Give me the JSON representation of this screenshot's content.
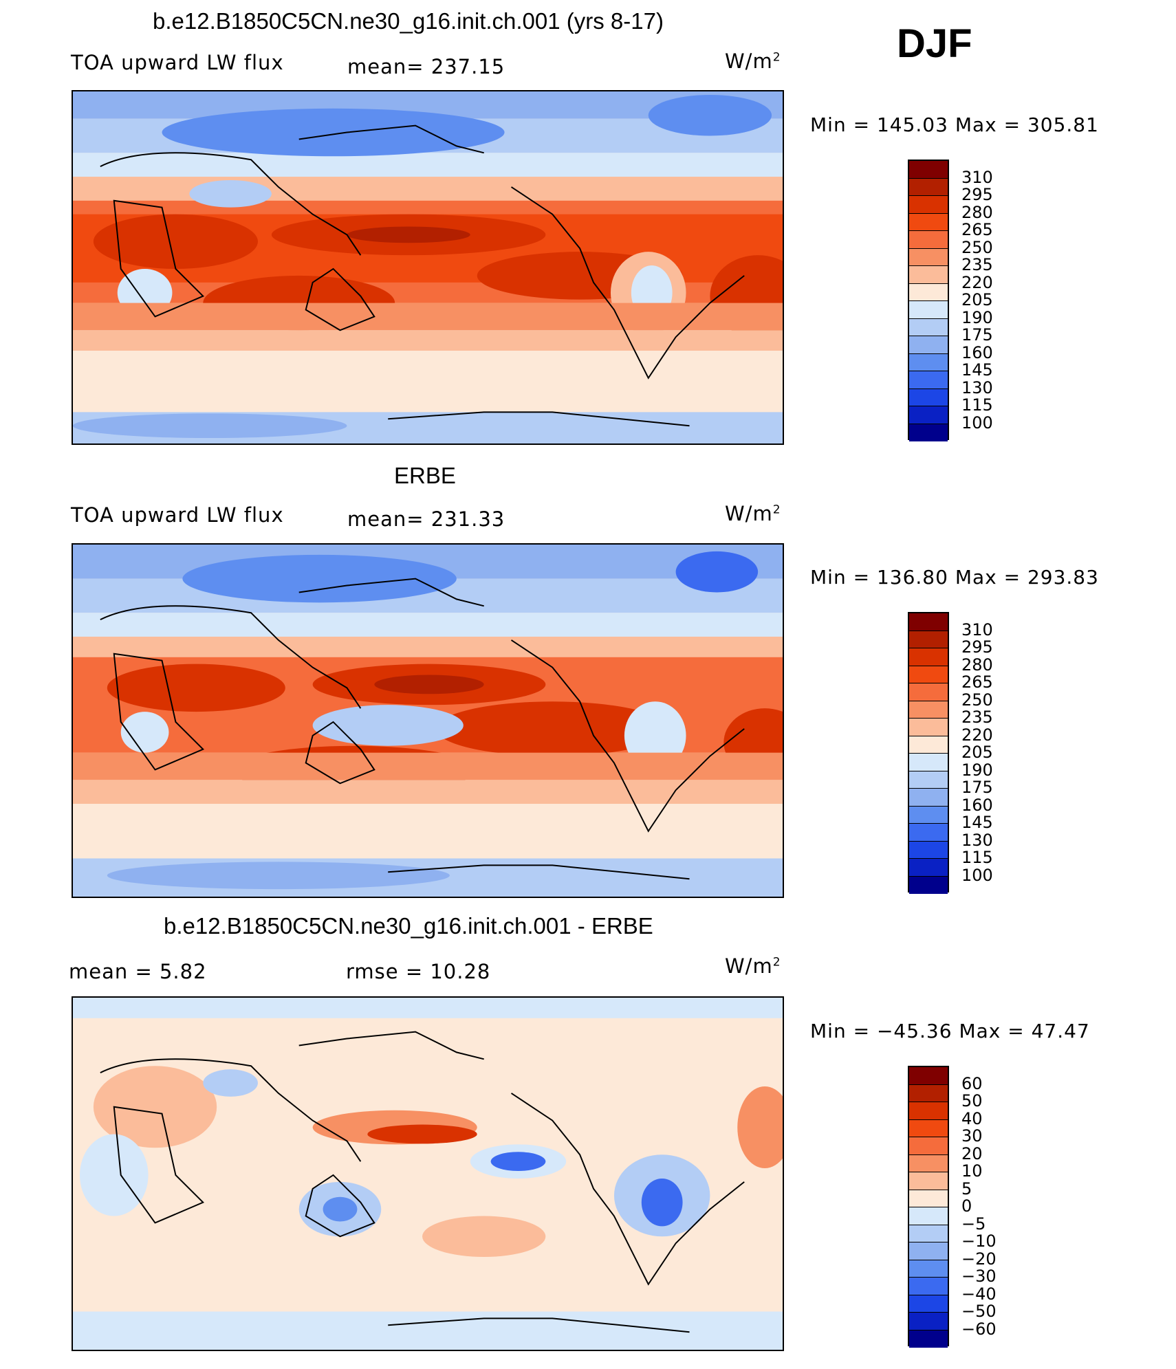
{
  "season": "DJF",
  "panels": [
    {
      "title": "b.e12.B1850C5CN.ne30_g16.init.ch.001 (yrs 8-17)",
      "field": "TOA upward LW flux",
      "stat_left": "",
      "stat_mid": "mean=  237.15",
      "units_base": "W/m",
      "units_sup": "2",
      "minmax": "Min  =  145.03  Max  =  305.81",
      "levels": [
        "310",
        "295",
        "280",
        "265",
        "250",
        "235",
        "220",
        "205",
        "190",
        "175",
        "160",
        "145",
        "130",
        "115",
        "100"
      ]
    },
    {
      "title": "ERBE",
      "field": "TOA upward LW flux",
      "stat_left": "",
      "stat_mid": "mean=  231.33",
      "units_base": "W/m",
      "units_sup": "2",
      "minmax": "Min  =  136.80  Max  =  293.83",
      "levels": [
        "310",
        "295",
        "280",
        "265",
        "250",
        "235",
        "220",
        "205",
        "190",
        "175",
        "160",
        "145",
        "130",
        "115",
        "100"
      ]
    },
    {
      "title": "b.e12.B1850C5CN.ne30_g16.init.ch.001 - ERBE",
      "field": "",
      "stat_left": "mean =     5.82",
      "stat_mid": "rmse =    10.28",
      "units_base": "W/m",
      "units_sup": "2",
      "minmax": "Min  =  −45.36  Max  =    47.47",
      "levels": [
        "60",
        "50",
        "40",
        "30",
        "20",
        "10",
        "5",
        "0",
        "−5",
        "−10",
        "−20",
        "−30",
        "−40",
        "−50",
        "−60"
      ]
    }
  ],
  "colorbar_colors": [
    "#7f0000",
    "#b22000",
    "#d93200",
    "#f04a10",
    "#f56c3c",
    "#f79063",
    "#fbbc9a",
    "#fde9d8",
    "#d6e8fa",
    "#b3cdf5",
    "#8fb1f0",
    "#5e8ef0",
    "#3b6af0",
    "#1c46e6",
    "#0a21c4",
    "#00008c"
  ]
}
